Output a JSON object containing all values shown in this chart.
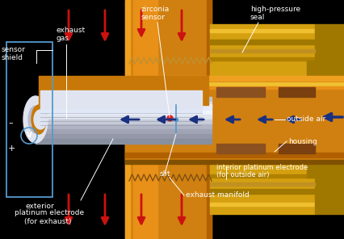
{
  "background_color": "#000000",
  "labels": {
    "sensor_shield": "sensor\nshield",
    "exhaust_gas": "exhaust\ngas",
    "zirconia_sensor": "zirconia\nsensor",
    "high_pressure_seal": "high-pressure\nseal",
    "outside_air": "outside air",
    "housing": "housing",
    "interior_electrode": "interior platinum electrode\n(for outside air)",
    "exterior_electrode": "exterior\nplatinum electrode\n(for exhaust)",
    "exhaust_manifold": "exhaust manifold",
    "slit": "slit"
  },
  "white": "#ffffff",
  "red_arrow": "#cc1111",
  "blue_arrow": "#1a3080",
  "orange_bright": "#f0a020",
  "orange_mid": "#d08010",
  "orange_dark": "#b06000",
  "gold_bright": "#f0c030",
  "gold_mid": "#d4a010",
  "gold_dark": "#a07800",
  "silver_light": "#e0e4f0",
  "silver_mid": "#b8bccf",
  "silver_dark": "#8890a8",
  "inner_orange": "#c87808",
  "brown_rect": "#7a4010",
  "line_blue": "#5599cc",
  "black": "#000000"
}
